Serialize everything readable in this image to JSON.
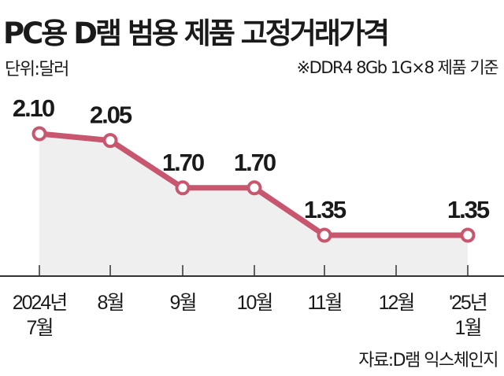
{
  "title": "PC용 D램 범용 제품 고정거래가격",
  "unit": "단위:달러",
  "note": "※DDR4 8Gb 1G×8 제품 기준",
  "source": "자료:D램 익스체인지",
  "colors": {
    "line": "#c9566f",
    "fill": "#efefef",
    "axis": "#333333"
  },
  "chart_data": {
    "type": "line",
    "title": "PC용 D램 범용 제품 고정거래가격",
    "ylabel": "단위:달러",
    "categories": [
      [
        "2024년",
        "7월"
      ],
      [
        "8월"
      ],
      [
        "9월"
      ],
      [
        "10월"
      ],
      [
        "11월"
      ],
      [
        "12월"
      ],
      [
        "'25년",
        "1월"
      ]
    ],
    "values": [
      2.1,
      2.05,
      1.7,
      1.7,
      1.35,
      1.35,
      1.35
    ],
    "data_labels": [
      "2.10",
      "2.05",
      "1.70",
      "1.70",
      "1.35",
      null,
      "1.35"
    ],
    "markers": [
      true,
      true,
      true,
      true,
      true,
      false,
      true
    ],
    "ylim": [
      1.05,
      2.5
    ],
    "grid": false
  }
}
